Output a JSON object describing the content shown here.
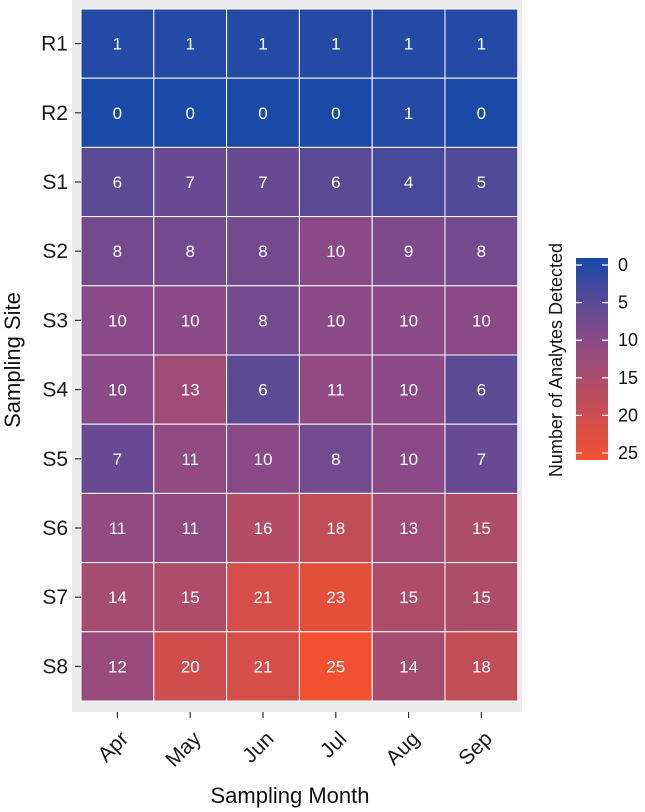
{
  "chart_data": {
    "type": "heatmap",
    "xlabel": "Sampling Month",
    "ylabel": "Sampling Site",
    "x_categories": [
      "Apr",
      "May",
      "Jun",
      "Jul",
      "Aug",
      "Sep"
    ],
    "y_categories": [
      "R1",
      "R2",
      "S1",
      "S2",
      "S3",
      "S4",
      "S5",
      "S6",
      "S7",
      "S8"
    ],
    "values": [
      [
        1,
        1,
        1,
        1,
        1,
        1
      ],
      [
        0,
        0,
        0,
        0,
        1,
        0
      ],
      [
        6,
        7,
        7,
        6,
        4,
        5
      ],
      [
        8,
        8,
        8,
        10,
        9,
        8
      ],
      [
        10,
        10,
        8,
        10,
        10,
        10
      ],
      [
        10,
        13,
        6,
        11,
        10,
        6
      ],
      [
        7,
        11,
        10,
        8,
        10,
        7
      ],
      [
        11,
        11,
        16,
        18,
        13,
        15
      ],
      [
        14,
        15,
        21,
        23,
        15,
        15
      ],
      [
        12,
        20,
        21,
        25,
        14,
        18
      ]
    ],
    "value_range": [
      0,
      25
    ],
    "colors": {
      "low": "#1a4aa8",
      "mid": "#8a4a88",
      "high": "#f25030",
      "panel": "#ebebeb",
      "grid": "#ffffff"
    },
    "legend": {
      "title": "Number of Analytes Detected",
      "ticks": [
        0,
        5,
        10,
        15,
        20,
        25
      ],
      "position": "right"
    }
  }
}
